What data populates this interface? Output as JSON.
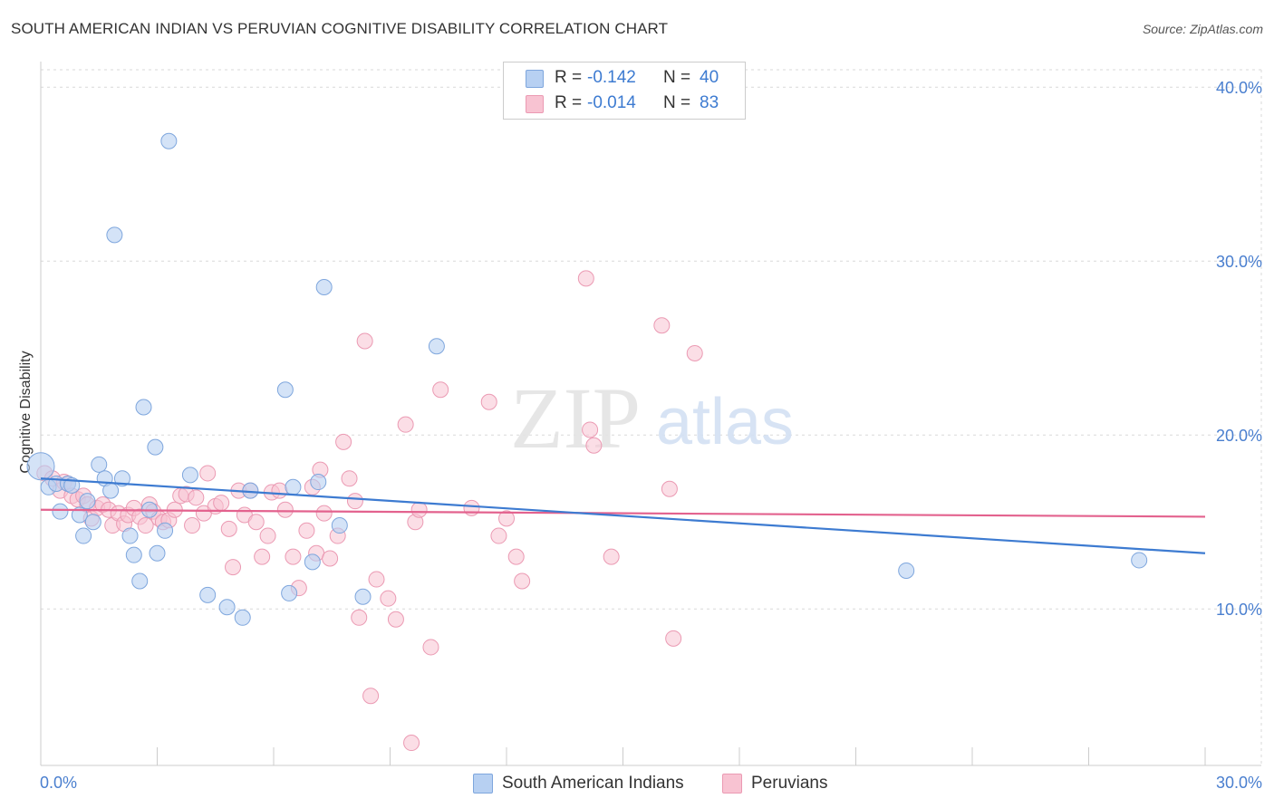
{
  "title": "SOUTH AMERICAN INDIAN VS PERUVIAN COGNITIVE DISABILITY CORRELATION CHART",
  "source": "Source: ZipAtlas.com",
  "watermark": {
    "zip": "ZIP",
    "atlas": "atlas"
  },
  "stats": [
    {
      "r_label": "R =",
      "r_value": "-0.142",
      "n_label": "N =",
      "n_value": "40"
    },
    {
      "r_label": "R =",
      "r_value": "-0.014",
      "n_label": "N =",
      "n_value": "83"
    }
  ],
  "legend": [
    "South American Indians",
    "Peruvians"
  ],
  "colors": {
    "blue_fill": "#b7d0f2",
    "blue_stroke": "#7ea6dd",
    "blue_line": "#3d7bd1",
    "pink_fill": "#f8c3d2",
    "pink_stroke": "#eb9ab3",
    "pink_line": "#e3628e",
    "axis_text": "#4a7fcf",
    "grid": "#d9d9d9"
  },
  "chart_data": {
    "type": "scatter",
    "title": "SOUTH AMERICAN INDIAN VS PERUVIAN COGNITIVE DISABILITY CORRELATION CHART",
    "xlabel": "",
    "ylabel": "Cognitive Disability",
    "xlim": [
      0,
      30
    ],
    "ylim": [
      1.0,
      41.0
    ],
    "x_tick_labels": [
      "0.0%",
      "30.0%"
    ],
    "y_ticks": [
      10,
      20,
      30,
      40
    ],
    "y_tick_labels": [
      "10.0%",
      "20.0%",
      "30.0%",
      "40.0%"
    ],
    "grid": "horizontal dashed",
    "legend_position": "bottom-center",
    "series": [
      {
        "name": "South American Indians",
        "color": "blue",
        "trend": {
          "x": [
            0,
            30
          ],
          "y": [
            17.5,
            13.2
          ]
        },
        "points": [
          [
            0.0,
            18.2
          ],
          [
            0.2,
            17.0
          ],
          [
            0.4,
            17.2
          ],
          [
            0.5,
            15.6
          ],
          [
            0.7,
            17.2
          ],
          [
            0.8,
            17.1
          ],
          [
            1.0,
            15.4
          ],
          [
            1.1,
            14.2
          ],
          [
            1.2,
            16.2
          ],
          [
            1.35,
            15.0
          ],
          [
            1.5,
            18.3
          ],
          [
            1.65,
            17.5
          ],
          [
            1.8,
            16.8
          ],
          [
            1.9,
            31.5
          ],
          [
            2.1,
            17.5
          ],
          [
            2.3,
            14.2
          ],
          [
            2.4,
            13.1
          ],
          [
            2.55,
            11.6
          ],
          [
            2.65,
            21.6
          ],
          [
            2.8,
            15.7
          ],
          [
            2.95,
            19.3
          ],
          [
            3.0,
            13.2
          ],
          [
            3.2,
            14.5
          ],
          [
            3.3,
            36.9
          ],
          [
            3.85,
            17.7
          ],
          [
            4.3,
            10.8
          ],
          [
            4.8,
            10.1
          ],
          [
            5.2,
            9.5
          ],
          [
            5.4,
            16.8
          ],
          [
            6.3,
            22.6
          ],
          [
            6.4,
            10.9
          ],
          [
            6.5,
            17.0
          ],
          [
            7.0,
            12.7
          ],
          [
            7.15,
            17.3
          ],
          [
            7.3,
            28.5
          ],
          [
            7.7,
            14.8
          ],
          [
            8.3,
            10.7
          ],
          [
            10.2,
            25.1
          ],
          [
            22.3,
            12.2
          ],
          [
            28.3,
            12.8
          ]
        ]
      },
      {
        "name": "Peruvians",
        "color": "pink",
        "trend": {
          "x": [
            0,
            30
          ],
          "y": [
            15.7,
            15.3
          ]
        },
        "points": [
          [
            0.1,
            17.8
          ],
          [
            0.3,
            17.5
          ],
          [
            0.5,
            16.8
          ],
          [
            0.6,
            17.3
          ],
          [
            0.7,
            17.2
          ],
          [
            0.8,
            16.5
          ],
          [
            0.95,
            16.3
          ],
          [
            1.1,
            16.5
          ],
          [
            1.2,
            16.0
          ],
          [
            1.3,
            15.2
          ],
          [
            1.45,
            15.8
          ],
          [
            1.6,
            16.0
          ],
          [
            1.75,
            15.7
          ],
          [
            1.85,
            14.8
          ],
          [
            2.0,
            15.5
          ],
          [
            2.15,
            14.9
          ],
          [
            2.25,
            15.4
          ],
          [
            2.4,
            15.8
          ],
          [
            2.55,
            15.3
          ],
          [
            2.7,
            14.8
          ],
          [
            2.8,
            16.0
          ],
          [
            2.9,
            15.6
          ],
          [
            3.05,
            15.2
          ],
          [
            3.15,
            15.0
          ],
          [
            3.3,
            15.1
          ],
          [
            3.45,
            15.7
          ],
          [
            3.6,
            16.5
          ],
          [
            3.75,
            16.6
          ],
          [
            3.9,
            14.8
          ],
          [
            4.0,
            16.4
          ],
          [
            4.2,
            15.5
          ],
          [
            4.3,
            17.8
          ],
          [
            4.5,
            15.9
          ],
          [
            4.65,
            16.1
          ],
          [
            4.85,
            14.6
          ],
          [
            4.95,
            12.4
          ],
          [
            5.1,
            16.8
          ],
          [
            5.25,
            15.4
          ],
          [
            5.4,
            16.8
          ],
          [
            5.55,
            15.0
          ],
          [
            5.7,
            13.0
          ],
          [
            5.85,
            14.2
          ],
          [
            5.95,
            16.7
          ],
          [
            6.15,
            16.8
          ],
          [
            6.3,
            15.7
          ],
          [
            6.5,
            13.0
          ],
          [
            6.65,
            11.2
          ],
          [
            6.85,
            14.5
          ],
          [
            7.0,
            17.0
          ],
          [
            7.1,
            13.2
          ],
          [
            7.2,
            18.0
          ],
          [
            7.3,
            15.5
          ],
          [
            7.45,
            12.9
          ],
          [
            7.65,
            14.2
          ],
          [
            7.8,
            19.6
          ],
          [
            7.95,
            17.5
          ],
          [
            8.1,
            16.2
          ],
          [
            8.2,
            9.5
          ],
          [
            8.35,
            25.4
          ],
          [
            8.5,
            5.0
          ],
          [
            8.65,
            11.7
          ],
          [
            8.95,
            10.6
          ],
          [
            9.15,
            9.4
          ],
          [
            9.4,
            20.6
          ],
          [
            9.55,
            2.3
          ],
          [
            9.65,
            15.0
          ],
          [
            9.75,
            15.7
          ],
          [
            10.05,
            7.8
          ],
          [
            10.3,
            22.6
          ],
          [
            11.1,
            15.8
          ],
          [
            11.55,
            21.9
          ],
          [
            11.8,
            14.2
          ],
          [
            12.0,
            15.2
          ],
          [
            12.25,
            13.0
          ],
          [
            12.4,
            11.6
          ],
          [
            14.05,
            29.0
          ],
          [
            14.15,
            20.3
          ],
          [
            14.25,
            19.4
          ],
          [
            14.7,
            13.0
          ],
          [
            16.0,
            26.3
          ],
          [
            16.3,
            8.3
          ],
          [
            16.85,
            24.7
          ],
          [
            16.2,
            16.9
          ]
        ]
      }
    ]
  }
}
